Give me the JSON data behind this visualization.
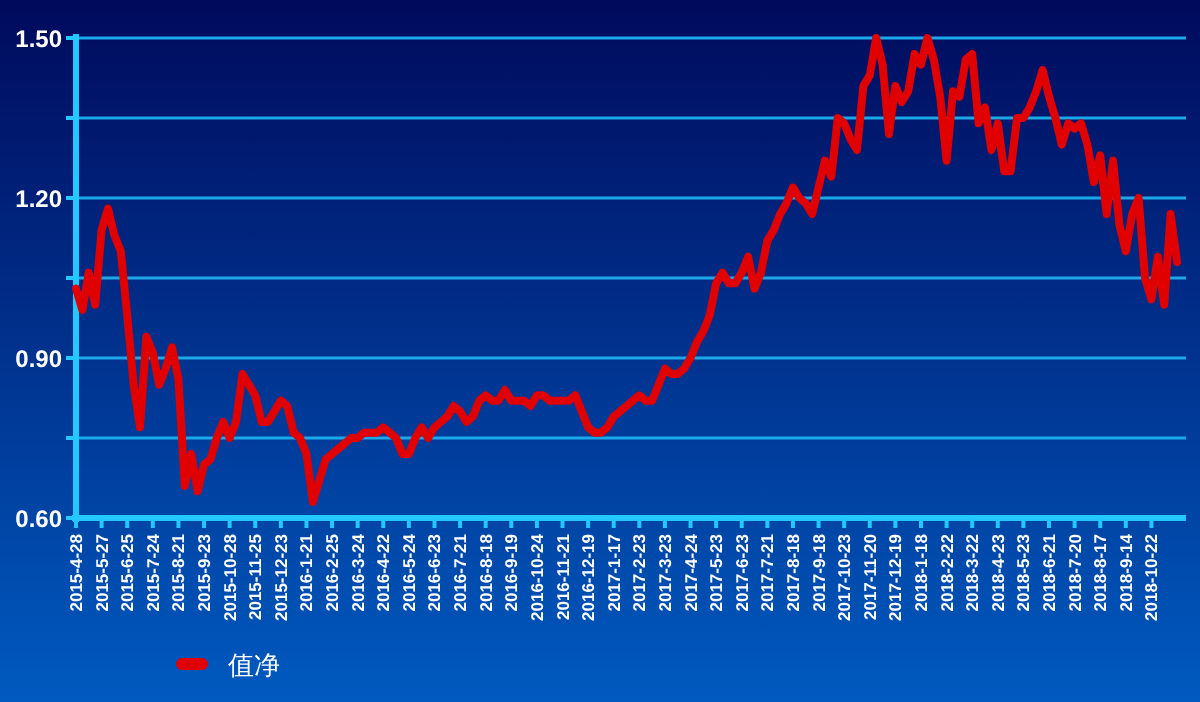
{
  "chart_data": {
    "type": "line",
    "categories": [
      "2015-4-28",
      null,
      null,
      null,
      "2015-5-27",
      null,
      null,
      null,
      "2015-6-25",
      null,
      null,
      null,
      "2015-7-24",
      null,
      null,
      null,
      "2015-8-21",
      null,
      null,
      null,
      "2015-9-23",
      null,
      null,
      null,
      "2015-10-28",
      null,
      null,
      null,
      "2015-11-25",
      null,
      null,
      null,
      "2015-12-23",
      null,
      null,
      null,
      "2016-1-21",
      null,
      null,
      null,
      "2016-2-25",
      null,
      null,
      null,
      "2016-3-24",
      null,
      null,
      null,
      "2016-4-22",
      null,
      null,
      null,
      "2016-5-24",
      null,
      null,
      null,
      "2016-6-23",
      null,
      null,
      null,
      "2016-7-21",
      null,
      null,
      null,
      "2016-8-18",
      null,
      null,
      null,
      "2016-9-19",
      null,
      null,
      null,
      "2016-10-24",
      null,
      null,
      null,
      "2016-11-21",
      null,
      null,
      null,
      "2016-12-19",
      null,
      null,
      null,
      "2017-1-17",
      null,
      null,
      null,
      "2017-2-23",
      null,
      null,
      null,
      "2017-3-23",
      null,
      null,
      null,
      "2017-4-24",
      null,
      null,
      null,
      "2017-5-23",
      null,
      null,
      null,
      "2017-6-23",
      null,
      null,
      null,
      "2017-7-21",
      null,
      null,
      null,
      "2017-8-18",
      null,
      null,
      null,
      "2017-9-18",
      null,
      null,
      null,
      "2017-10-23",
      null,
      null,
      null,
      "2017-11-20",
      null,
      null,
      null,
      "2017-12-19",
      null,
      null,
      null,
      "2018-1-18",
      null,
      null,
      null,
      "2018-2-22",
      null,
      null,
      null,
      "2018-3-22",
      null,
      null,
      null,
      "2018-4-23",
      null,
      null,
      null,
      "2018-5-23",
      null,
      null,
      null,
      "2018-6-21",
      null,
      null,
      null,
      "2018-7-20",
      null,
      null,
      null,
      "2018-8-17",
      null,
      null,
      null,
      "2018-9-14",
      null,
      null,
      null,
      "2018-10-22",
      null,
      null,
      null,
      null
    ],
    "series": [
      {
        "name": "值净",
        "color": "#e00000",
        "values": [
          1.03,
          0.99,
          1.06,
          1.0,
          1.14,
          1.18,
          1.13,
          1.1,
          0.98,
          0.85,
          0.77,
          0.94,
          0.91,
          0.85,
          0.88,
          0.92,
          0.86,
          0.66,
          0.72,
          0.65,
          0.7,
          0.71,
          0.75,
          0.78,
          0.75,
          0.78,
          0.87,
          0.85,
          0.83,
          0.78,
          0.78,
          0.8,
          0.82,
          0.81,
          0.76,
          0.75,
          0.72,
          0.63,
          0.67,
          0.71,
          0.72,
          0.73,
          0.74,
          0.75,
          0.75,
          0.76,
          0.76,
          0.76,
          0.77,
          0.76,
          0.75,
          0.72,
          0.72,
          0.75,
          0.77,
          0.75,
          0.77,
          0.78,
          0.79,
          0.81,
          0.8,
          0.78,
          0.79,
          0.82,
          0.83,
          0.82,
          0.82,
          0.84,
          0.82,
          0.82,
          0.82,
          0.81,
          0.83,
          0.83,
          0.82,
          0.82,
          0.82,
          0.82,
          0.83,
          0.8,
          0.77,
          0.76,
          0.76,
          0.77,
          0.79,
          0.8,
          0.81,
          0.82,
          0.83,
          0.82,
          0.82,
          0.85,
          0.88,
          0.87,
          0.87,
          0.88,
          0.9,
          0.93,
          0.95,
          0.98,
          1.04,
          1.06,
          1.04,
          1.04,
          1.06,
          1.09,
          1.03,
          1.06,
          1.12,
          1.14,
          1.17,
          1.19,
          1.22,
          1.2,
          1.19,
          1.17,
          1.22,
          1.27,
          1.24,
          1.35,
          1.34,
          1.31,
          1.29,
          1.41,
          1.43,
          1.5,
          1.45,
          1.32,
          1.41,
          1.38,
          1.4,
          1.47,
          1.45,
          1.5,
          1.46,
          1.39,
          1.27,
          1.4,
          1.39,
          1.46,
          1.47,
          1.34,
          1.37,
          1.29,
          1.34,
          1.25,
          1.25,
          1.35,
          1.35,
          1.37,
          1.4,
          1.44,
          1.39,
          1.35,
          1.3,
          1.34,
          1.33,
          1.34,
          1.3,
          1.23,
          1.28,
          1.17,
          1.27,
          1.15,
          1.1,
          1.17,
          1.2,
          1.05,
          1.01,
          1.09,
          1.0,
          1.17,
          1.08
        ]
      }
    ],
    "ylim": [
      0.6,
      1.5
    ],
    "yticks": [
      {
        "value": 0.6,
        "label": "0.60"
      },
      {
        "value": 0.75,
        "label": null
      },
      {
        "value": 0.9,
        "label": "0.90"
      },
      {
        "value": 1.05,
        "label": null
      },
      {
        "value": 1.2,
        "label": "1.20"
      },
      {
        "value": 1.35,
        "label": null
      },
      {
        "value": 1.5,
        "label": "1.50"
      }
    ],
    "grid": "y",
    "legend": "bottom left"
  }
}
